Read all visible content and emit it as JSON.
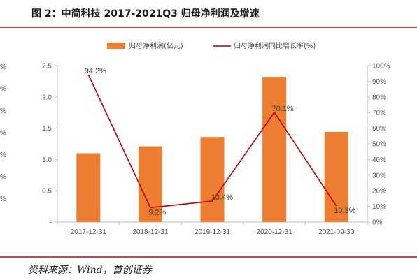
{
  "figure": {
    "title": "图 2：中简科技 2017-2021Q3 归母净利润及增速",
    "source": "资料来源：Wind，首创证券"
  },
  "colors": {
    "bar": "#ED7D31",
    "line": "#C00000",
    "rule": "#C00000",
    "axis": "#BFBFBF"
  },
  "chart_data": {
    "type": "bar",
    "categories": [
      "2017-12-31",
      "2018-12-31",
      "2019-12-31",
      "2020-12-31",
      "2021-09-30"
    ],
    "series": [
      {
        "name": "归母净利润(亿元)",
        "type": "bar",
        "axis": "left",
        "values": [
          1.1,
          1.21,
          1.36,
          2.32,
          1.44
        ]
      },
      {
        "name": "归母净利润同比增长率(%)",
        "type": "line",
        "axis": "right",
        "values": [
          94.2,
          9.2,
          13.4,
          70.1,
          10.3
        ],
        "labels": [
          "94.2%",
          "9.2%",
          "13.4%",
          "70.1%",
          "10.3%"
        ]
      }
    ],
    "left_axis": {
      "ylim": [
        0,
        2.5
      ],
      "ticks": [
        0,
        0.5,
        1.0,
        1.5,
        2.0,
        2.5
      ],
      "tick_labels": [
        "-",
        "0.5",
        "1.0",
        "1.5",
        "2.0",
        "2.5"
      ]
    },
    "right_axis": {
      "ylim": [
        0,
        100
      ],
      "ticks": [
        0,
        10,
        20,
        30,
        40,
        50,
        60,
        70,
        80,
        90,
        100
      ],
      "tick_labels": [
        "0%",
        "10%",
        "20%",
        "30%",
        "40%",
        "50%",
        "60%",
        "70%",
        "80%",
        "90%",
        "100%"
      ]
    },
    "cut_left_tick_labels": [
      "%",
      "%",
      "%",
      "%",
      "%",
      "%",
      "%"
    ],
    "legend_position": "top",
    "grid": false
  }
}
